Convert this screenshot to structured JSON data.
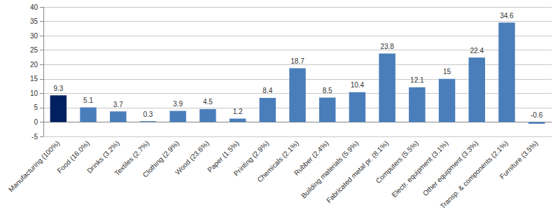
{
  "chart_data": {
    "type": "bar",
    "categories": [
      "Manufacturing (100%)",
      "Food (16.0%)",
      "Drinks (3.2%)",
      "Textiles (2.7%)",
      "Clothing (2.9%)",
      "Wood (23.6%)",
      "Paper (1.5%)",
      "Printing (2.9%)",
      "Chemicals (2.1%)",
      "Rubber (2.4%)",
      "Building materials (5.9%)",
      "Fabricated metal pr. (8.1%)",
      "Computers (5.5%)",
      "Electr. equipment (3.1%)",
      "Other equipment (3.3%)",
      "Transp. & components (2.1%)",
      "Furniture (3.5%)"
    ],
    "values": [
      9.3,
      5.1,
      3.7,
      0.3,
      3.9,
      4.5,
      1.2,
      8.4,
      18.7,
      8.5,
      10.4,
      23.8,
      12.1,
      15.0,
      22.4,
      34.6,
      -0.6
    ],
    "colors": [
      "#002060",
      "#4a7ebb",
      "#4a7ebb",
      "#4a7ebb",
      "#4a7ebb",
      "#4a7ebb",
      "#4a7ebb",
      "#4a7ebb",
      "#4a7ebb",
      "#4a7ebb",
      "#4a7ebb",
      "#4a7ebb",
      "#4a7ebb",
      "#4a7ebb",
      "#4a7ebb",
      "#4a7ebb",
      "#4a7ebb"
    ],
    "ylim": [
      -5,
      40
    ],
    "yticks": [
      -5,
      0,
      5,
      10,
      15,
      20,
      25,
      30,
      35,
      40
    ],
    "grid": true,
    "data_labels": true
  }
}
